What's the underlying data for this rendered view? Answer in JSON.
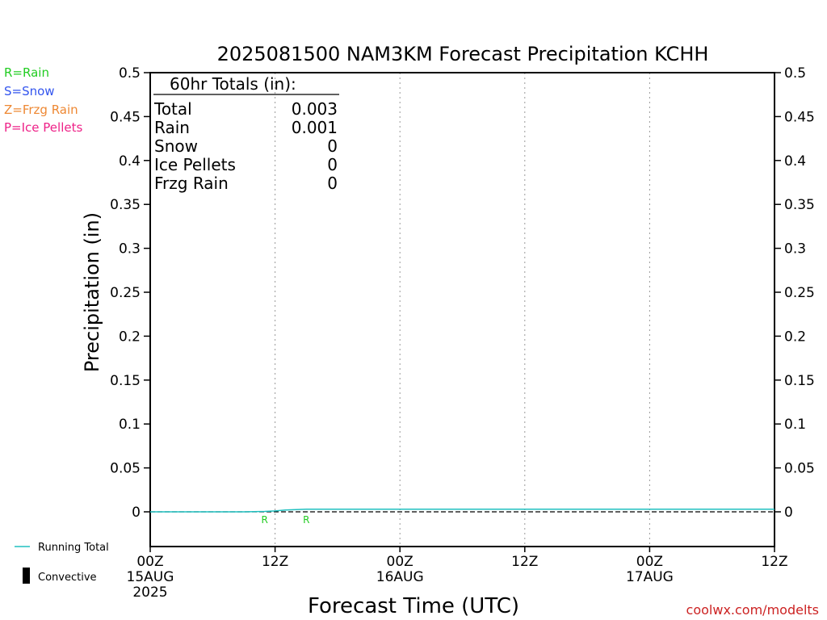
{
  "chart_data": {
    "type": "line",
    "title": "2025081500 NAM3KM Forecast Precipitation KCHH",
    "xlabel": "Forecast Time (UTC)",
    "ylabel": "Precipitation (in)",
    "ylim": [
      0,
      0.5
    ],
    "xlim": [
      0,
      60
    ],
    "y_ticks": [
      "0",
      "0.05",
      "0.1",
      "0.15",
      "0.2",
      "0.25",
      "0.3",
      "0.35",
      "0.4",
      "0.45",
      "0.5"
    ],
    "x_ticks": [
      {
        "hour": 0,
        "label": "00Z",
        "sub": "15AUG",
        "sub2": "2025"
      },
      {
        "hour": 12,
        "label": "12Z",
        "sub": "",
        "sub2": ""
      },
      {
        "hour": 24,
        "label": "00Z",
        "sub": "16AUG",
        "sub2": ""
      },
      {
        "hour": 36,
        "label": "12Z",
        "sub": "",
        "sub2": ""
      },
      {
        "hour": 48,
        "label": "00Z",
        "sub": "17AUG",
        "sub2": ""
      },
      {
        "hour": 60,
        "label": "12Z",
        "sub": "",
        "sub2": ""
      }
    ],
    "grid": "vertical dotted at 12Z and 00Z",
    "series": [
      {
        "name": "Running Total",
        "color": "#20c0c0",
        "x": [
          0,
          3,
          6,
          9,
          11,
          12,
          13,
          14,
          15,
          16,
          18,
          24,
          30,
          36,
          42,
          48,
          54,
          60
        ],
        "y": [
          0,
          0,
          0,
          0,
          0.0005,
          0.001,
          0.002,
          0.0025,
          0.003,
          0.003,
          0.003,
          0.003,
          0.003,
          0.003,
          0.003,
          0.003,
          0.003,
          0.003
        ]
      }
    ],
    "precip_type_markers": [
      {
        "hour": 11,
        "type": "R"
      },
      {
        "hour": 15,
        "type": "R"
      }
    ],
    "convective_values": [],
    "totals_box": {
      "header": "60hr Totals (in):",
      "rows": [
        {
          "label": "Total",
          "value": "0.003"
        },
        {
          "label": "Rain",
          "value": "0.001"
        },
        {
          "label": "Snow",
          "value": "0"
        },
        {
          "label": "Ice Pellets",
          "value": "0"
        },
        {
          "label": "Frzg Rain",
          "value": "0"
        }
      ]
    },
    "legend_left": [
      {
        "text": "R=Rain",
        "color": "#22cc22"
      },
      {
        "text": "S=Snow",
        "color": "#3355ee"
      },
      {
        "text": "Z=Frzg Rain",
        "color": "#ee8833"
      },
      {
        "text": "P=Ice Pellets",
        "color": "#ee2288"
      }
    ],
    "legend_bottom": [
      {
        "text": "Running Total",
        "symbol": "line",
        "color": "#20c0c0"
      },
      {
        "text": "Convective",
        "symbol": "bar",
        "color": "#000000"
      }
    ],
    "watermark": "coolwx.com/modelts"
  }
}
